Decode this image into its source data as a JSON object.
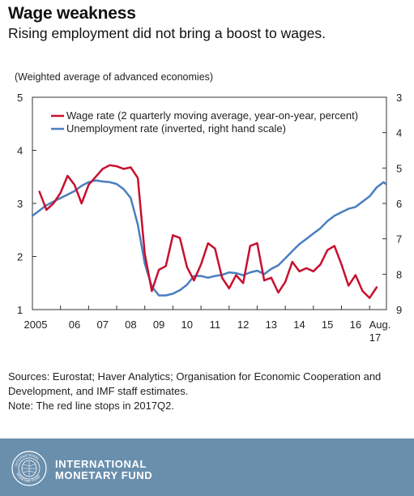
{
  "title": "Wage weakness",
  "subtitle": "Rising employment did not bring a boost to wages.",
  "chart_data": {
    "type": "line",
    "note_top": "(Weighted average of advanced economies)",
    "x_ticks": [
      "2005",
      "06",
      "07",
      "08",
      "09",
      "10",
      "11",
      "12",
      "13",
      "14",
      "15",
      "16",
      "Aug."
    ],
    "x_tick_extra": "17",
    "y_left": {
      "range": [
        1,
        5
      ],
      "ticks": [
        "5",
        "4",
        "3",
        "2",
        "1"
      ]
    },
    "y_right": {
      "range": [
        3,
        9
      ],
      "inverted": true,
      "ticks": [
        "3",
        "4",
        "5",
        "6",
        "7",
        "8",
        "9"
      ]
    },
    "legend_position": "top-right",
    "series": [
      {
        "name": "Wage rate (2 quarterly moving average, year-on-year, percent)",
        "color": "#c8102e",
        "axis": "left",
        "x": [
          2005.25,
          2005.5,
          2005.75,
          2006.0,
          2006.25,
          2006.5,
          2006.75,
          2007.0,
          2007.25,
          2007.5,
          2007.75,
          2008.0,
          2008.25,
          2008.5,
          2008.75,
          2009.0,
          2009.25,
          2009.5,
          2009.75,
          2010.0,
          2010.25,
          2010.5,
          2010.75,
          2011.0,
          2011.25,
          2011.5,
          2011.75,
          2012.0,
          2012.25,
          2012.5,
          2012.75,
          2013.0,
          2013.25,
          2013.5,
          2013.75,
          2014.0,
          2014.25,
          2014.5,
          2014.75,
          2015.0,
          2015.25,
          2015.5,
          2015.75,
          2016.0,
          2016.25,
          2016.5,
          2016.75,
          2017.0,
          2017.25
        ],
        "values": [
          3.22,
          2.88,
          3.0,
          3.2,
          3.52,
          3.35,
          3.0,
          3.35,
          3.5,
          3.65,
          3.72,
          3.7,
          3.65,
          3.68,
          3.48,
          2.05,
          1.35,
          1.75,
          1.82,
          2.4,
          2.35,
          1.8,
          1.55,
          1.85,
          2.25,
          2.15,
          1.6,
          1.4,
          1.65,
          1.5,
          2.2,
          2.25,
          1.55,
          1.6,
          1.32,
          1.52,
          1.9,
          1.72,
          1.78,
          1.72,
          1.85,
          2.12,
          2.2,
          1.85,
          1.45,
          1.65,
          1.35,
          1.22,
          1.42
        ]
      },
      {
        "name": "Unemployment rate (inverted, right hand scale)",
        "color": "#4a7ebf",
        "axis": "right",
        "x": [
          2005.0,
          2005.25,
          2005.5,
          2005.75,
          2006.0,
          2006.25,
          2006.5,
          2006.75,
          2007.0,
          2007.25,
          2007.5,
          2007.75,
          2008.0,
          2008.25,
          2008.5,
          2008.75,
          2009.0,
          2009.25,
          2009.5,
          2009.75,
          2010.0,
          2010.25,
          2010.5,
          2010.75,
          2011.0,
          2011.25,
          2011.5,
          2011.75,
          2012.0,
          2012.25,
          2012.5,
          2012.75,
          2013.0,
          2013.25,
          2013.5,
          2013.75,
          2014.0,
          2014.25,
          2014.5,
          2014.75,
          2015.0,
          2015.25,
          2015.5,
          2015.75,
          2016.0,
          2016.25,
          2016.5,
          2016.75,
          2017.0,
          2017.25,
          2017.5,
          2017.58
        ],
        "values": [
          6.35,
          6.2,
          6.05,
          5.95,
          5.85,
          5.75,
          5.65,
          5.5,
          5.4,
          5.35,
          5.38,
          5.4,
          5.45,
          5.6,
          5.85,
          6.6,
          7.7,
          8.35,
          8.6,
          8.6,
          8.55,
          8.45,
          8.3,
          8.05,
          8.05,
          8.1,
          8.05,
          8.02,
          7.95,
          7.97,
          8.03,
          7.95,
          7.9,
          8.0,
          7.85,
          7.75,
          7.55,
          7.35,
          7.15,
          7.0,
          6.85,
          6.7,
          6.5,
          6.35,
          6.25,
          6.15,
          6.1,
          5.95,
          5.8,
          5.55,
          5.4,
          5.45
        ]
      }
    ]
  },
  "notes": {
    "sources": "Sources: Eurostat; Haver Analytics; Organisation for Economic Cooperation and Development, and IMF staff estimates.",
    "note": "Note: The red line stops in 2017Q2."
  },
  "footer": {
    "line1": "INTERNATIONAL",
    "line2": "MONETARY FUND",
    "seal_text_top": "INTERNATIONAL",
    "seal_text_bottom": "MONETARY FUND",
    "background_color": "#6a8fad"
  }
}
